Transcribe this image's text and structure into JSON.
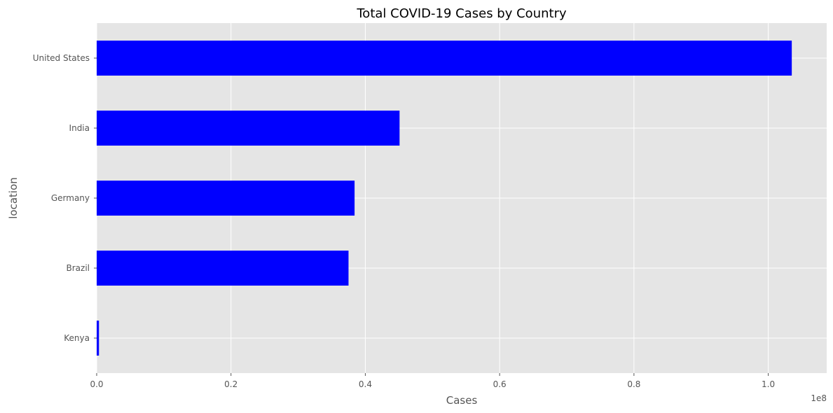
{
  "chart_data": {
    "type": "bar",
    "orientation": "horizontal",
    "title": "Total COVID-19 Cases by Country",
    "xlabel": "Cases",
    "ylabel": "location",
    "x_offset_label": "1e8",
    "categories": [
      "Kenya",
      "Brazil",
      "Germany",
      "India",
      "United States"
    ],
    "values": [
      340000,
      37500000,
      38400000,
      45100000,
      103500000
    ],
    "xlim": [
      0,
      108700000
    ],
    "xticks": [
      0,
      20000000,
      40000000,
      60000000,
      80000000,
      100000000
    ],
    "xtick_labels": [
      "0.0",
      "0.2",
      "0.4",
      "0.6",
      "0.8",
      "1.0"
    ],
    "grid": true,
    "bar_color": "#0000ff",
    "plot_background": "#e5e5e5",
    "grid_color": "#ffffff"
  }
}
